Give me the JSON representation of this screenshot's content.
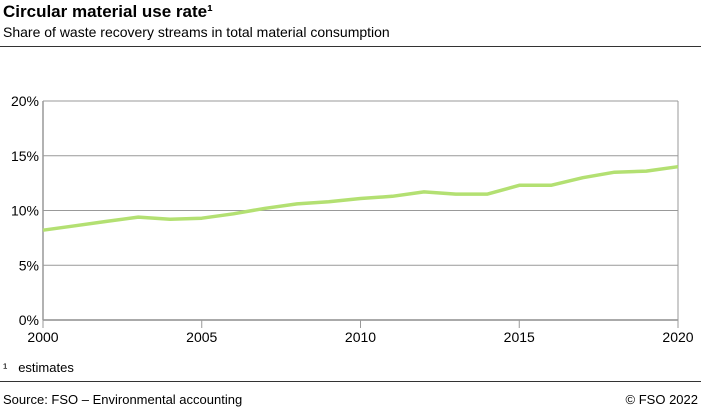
{
  "header": {
    "title": "Circular material use rate¹",
    "subtitle": "Share of waste recovery streams in total material consumption"
  },
  "footer": {
    "note_mark": "¹",
    "note": "estimates",
    "source": "Source: FSO – Environmental accounting",
    "copyright": "© FSO 2022"
  },
  "chart_data": {
    "type": "line",
    "title": "Circular material use rate¹",
    "subtitle": "Share of waste recovery streams in total material consumption",
    "x": [
      2000,
      2001,
      2002,
      2003,
      2004,
      2005,
      2006,
      2007,
      2008,
      2009,
      2010,
      2011,
      2012,
      2013,
      2014,
      2015,
      2016,
      2017,
      2018,
      2019,
      2020
    ],
    "series": [
      {
        "values": [
          8.2,
          8.6,
          9.0,
          9.4,
          9.2,
          9.3,
          9.7,
          10.2,
          10.6,
          10.8,
          11.1,
          11.3,
          11.7,
          11.5,
          11.5,
          12.3,
          12.3,
          13.0,
          13.5,
          13.6,
          14.0
        ],
        "color": "#b3e072"
      }
    ],
    "xlim": [
      2000,
      2020
    ],
    "ylim": [
      0,
      20
    ],
    "xticks": [
      "2000",
      "2005",
      "2010",
      "2015",
      "2020"
    ],
    "yticks": [
      "0%",
      "5%",
      "10%",
      "15%",
      "20%"
    ],
    "grid": true
  }
}
